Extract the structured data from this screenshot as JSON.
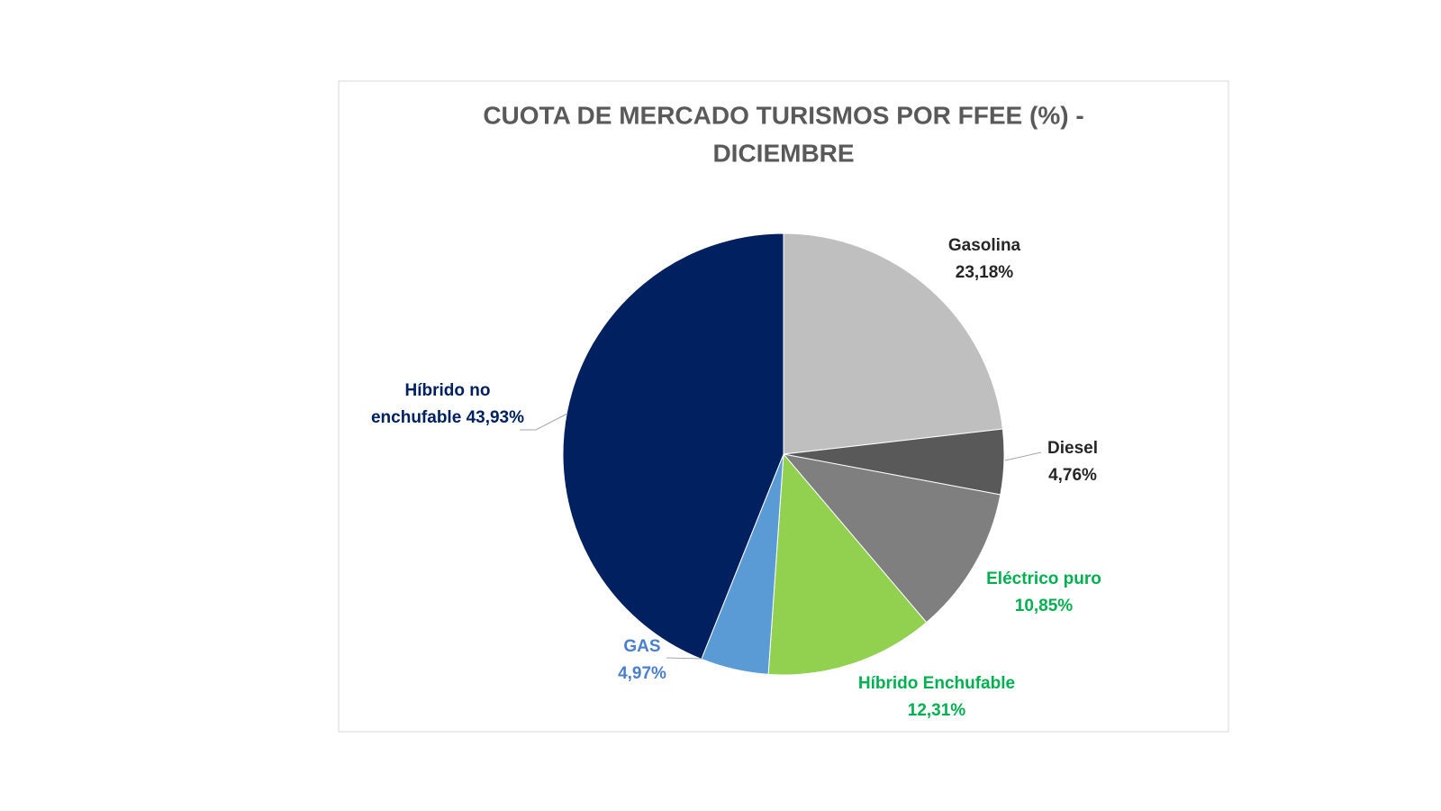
{
  "chart_data": {
    "type": "pie",
    "title": [
      "CUOTA DE MERCADO TURISMOS POR FFEE (%)  -",
      "DICIEMBRE"
    ],
    "categories": [
      "Gasolina",
      "Diesel",
      "Eléctrico puro",
      "Híbrido Enchufable",
      "GAS",
      "Híbrido no enchufable"
    ],
    "values": [
      23.18,
      4.76,
      10.85,
      12.31,
      4.97,
      43.93
    ],
    "value_labels": [
      "23,18%",
      "4,76%",
      "10,85%",
      "12,31%",
      "4,97%",
      "43,93%"
    ],
    "colors": [
      "#bfbfbf",
      "#595959",
      "#7f7f7f",
      "#92d050",
      "#5b9bd5",
      "#002060"
    ],
    "label_colors": [
      "#262626",
      "#262626",
      "#00b050",
      "#00b050",
      "#4a7fcf",
      "#002060"
    ]
  }
}
